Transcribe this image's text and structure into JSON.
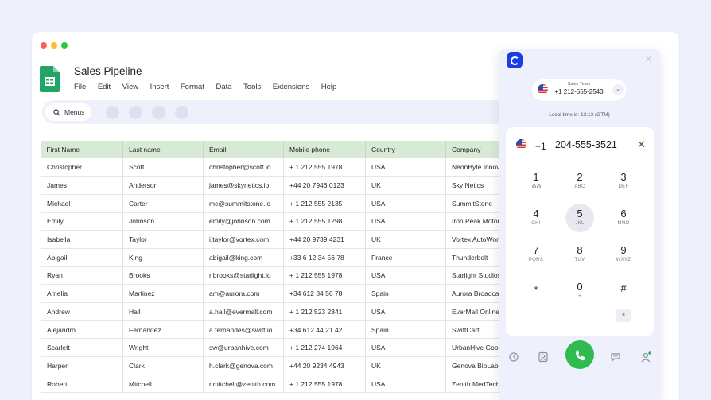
{
  "window": {
    "doc_title": "Sales Pipeline",
    "menu": [
      "File",
      "Edit",
      "View",
      "Insert",
      "Format",
      "Data",
      "Tools",
      "Extensions",
      "Help"
    ],
    "toolbar": {
      "menus_label": "Menus"
    }
  },
  "table": {
    "headers": [
      "First Name",
      "Last name",
      "Email",
      "Mobile phone",
      "Country",
      "Company"
    ],
    "rows": [
      [
        "Christopher",
        "Scott",
        "christopher@scott.io",
        "+ 1 212 555 1978",
        "USA",
        "NeonByte Innova"
      ],
      [
        "James",
        "Anderson",
        "james@skynetics.io",
        "+44 20 7946 0123",
        "UK",
        "Sky Netics"
      ],
      [
        "Michael",
        "Carter",
        "mc@summitstone.io",
        "+ 1 212 555 2135",
        "USA",
        "SummitStone"
      ],
      [
        "Emily",
        "Johnson",
        "emily@johnson.com",
        "+ 1 212 555 1298",
        "USA",
        "Iron Peak Motors"
      ],
      [
        "Isabella",
        "Taylor",
        "i.taylor@vortex.com",
        "+44 20 9739 4231",
        "UK",
        "Vortex AutoWorl"
      ],
      [
        "Abigail",
        "King",
        "abigail@king.com",
        "+33 6 12 34 56 78",
        "France",
        "Thunderbolt"
      ],
      [
        "Ryan",
        "Brooks",
        "r.brooks@starlight.io",
        "+ 1 212 555 1978",
        "USA",
        "Starlight Studios"
      ],
      [
        "Amelia",
        "Martinez",
        "am@aurora.com",
        "+34 612 34 56 78",
        "Spain",
        "Aurora Broadcas"
      ],
      [
        "Andrew",
        "Hall",
        "a.hall@evermall.com",
        "+ 1 212 523 2341",
        "USA",
        "EverMall Online"
      ],
      [
        "Alejandro",
        "Fernández",
        "a.fernandes@swift.io",
        "+34 612 44 21 42",
        "Spain",
        "SwiftCart"
      ],
      [
        "Scarlett",
        "Wright",
        "sw@urbanhive.com",
        "+ 1 212 274 1964",
        "USA",
        "UrbanHive Good"
      ],
      [
        "Harper",
        "Clark",
        "h.clark@genova.com",
        "+44 20 9234 4943",
        "UK",
        "Genova BioLabs"
      ],
      [
        "Robert",
        "Mitchell",
        "r.mitchell@zenith.com",
        "+ 1 212 555 1978",
        "USA",
        "Zenith MedTech"
      ]
    ]
  },
  "dialer": {
    "line_label": "Sales Team",
    "line_number": "+1 212-555-2543",
    "local_time": "Local time is: 13:13 (GTM)",
    "country_code": "+1",
    "dialed_number": "204-555-3521",
    "keys": [
      {
        "digit": "1",
        "letters": "voicemail-icon"
      },
      {
        "digit": "2",
        "letters": "ABC"
      },
      {
        "digit": "3",
        "letters": "DEF"
      },
      {
        "digit": "4",
        "letters": "GHI"
      },
      {
        "digit": "5",
        "letters": "JKL"
      },
      {
        "digit": "6",
        "letters": "MNO"
      },
      {
        "digit": "7",
        "letters": "PQRS"
      },
      {
        "digit": "8",
        "letters": "TUV"
      },
      {
        "digit": "9",
        "letters": "WXYZ"
      },
      {
        "digit": "*",
        "letters": ""
      },
      {
        "digit": "0",
        "letters": "+"
      },
      {
        "digit": "#",
        "letters": ""
      }
    ],
    "backspace_symbol": "×",
    "nav_icons": [
      "history-icon",
      "contacts-icon",
      "phone-icon",
      "chat-icon",
      "user-icon"
    ],
    "colors": {
      "call_green": "#2fbb4f",
      "brand_blue": "#1a3de6",
      "header_green": "#d7ead6"
    }
  }
}
